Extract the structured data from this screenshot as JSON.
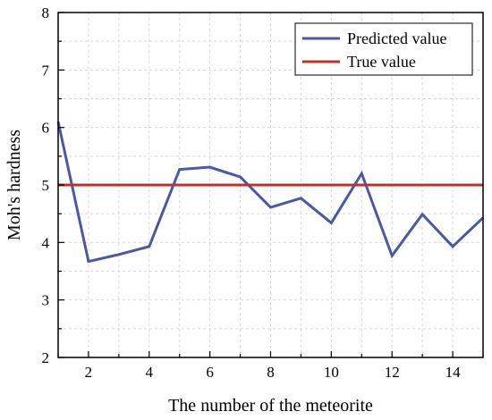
{
  "chart_data": {
    "type": "line",
    "xlabel": "The number of the meteorite",
    "ylabel": "Moh's hardness",
    "xlim": [
      1,
      15
    ],
    "ylim": [
      2,
      8
    ],
    "x_ticks": [
      2,
      4,
      6,
      8,
      10,
      12,
      14
    ],
    "y_ticks": [
      2,
      3,
      4,
      5,
      6,
      7,
      8
    ],
    "grid": true,
    "legend_position": "top-right",
    "series": [
      {
        "name": "Predicted value",
        "color": "#4a5a9c",
        "x": [
          1,
          2,
          3,
          4,
          5,
          6,
          7,
          8,
          9,
          10,
          11,
          12,
          13,
          14,
          15
        ],
        "values": [
          6.1,
          3.67,
          3.79,
          3.93,
          5.27,
          5.31,
          5.14,
          4.61,
          4.77,
          4.34,
          5.2,
          3.77,
          4.49,
          3.93,
          4.43
        ]
      },
      {
        "name": "True value",
        "color": "#b5372c",
        "x": [
          1,
          15
        ],
        "values": [
          5,
          5
        ]
      }
    ]
  }
}
